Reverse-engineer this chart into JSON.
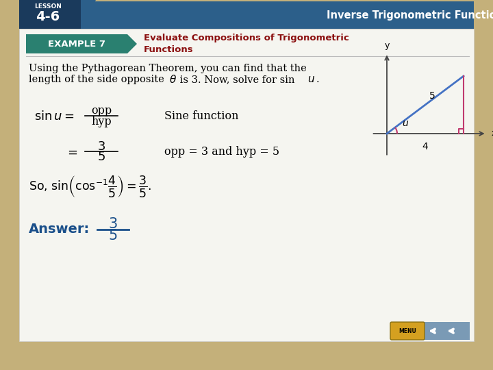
{
  "bg_outer": "#c4b07a",
  "bg_slide": "#f5f5f0",
  "header_bg": "#2c5f8a",
  "header_lesson_label": "LESSON",
  "header_lesson_num": "4-6",
  "header_title": "Inverse Trigonometric Functions",
  "header_title_color": "#ffffff",
  "example_bg": "#2a8070",
  "example_label": "EXAMPLE 7",
  "example_title_line1": "Evaluate Compositions of Trigonometric",
  "example_title_line2": "Functions",
  "example_title_color": "#8b1010",
  "body_line1": "Using the Pythagorean Theorem, you can find that the",
  "body_line2": "length of the side opposite  is 3. Now, solve for sin ",
  "step1_right": "Sine function",
  "step2_right": "opp = 3 and hyp = 5",
  "answer_label": "Answer:",
  "answer_color": "#1a4f8a",
  "tri_hyp_color": "#4472c4",
  "tri_side_color": "#c0396e",
  "axis_color": "#444444",
  "menu_bg": "#7a9ab5",
  "menu_btn_color": "#d4a020",
  "nav_arrow_color": "#ffffff"
}
